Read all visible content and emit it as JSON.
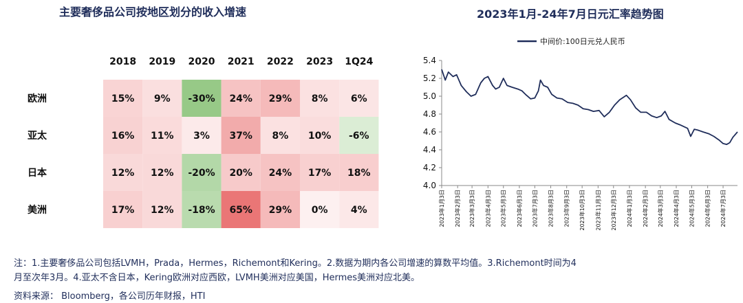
{
  "left_title": "主要奢侈品公司按地区划分的收入增速",
  "right_title": "2023年1月-24年7月日元汇率趋势图",
  "notes": {
    "line1": "注：1.主要奢侈品公司包括LVMH，Prada，Hermes，Richemont和Kering。2.数据为期内各公司增速的算数平均值。3.Richemont时间为4",
    "line2": "月至次年3月。4.亚太不含日本，Kering欧洲对应西欧，LVMH美洲对应美国，Hermes美洲对应北美。",
    "source": "资料来源： Bloomberg，各公司历年财报，HTI"
  },
  "colors": {
    "title": "#1f2d5a",
    "line": "#1f2d5a",
    "positive": "#e8474a",
    "negative": "#63b246"
  },
  "chart_data": [
    {
      "type": "heatmap",
      "title": "主要奢侈品公司按地区划分的收入增速",
      "columns": [
        "2018",
        "2019",
        "2020",
        "2021",
        "2022",
        "2023",
        "1Q24"
      ],
      "rows": [
        "欧洲",
        "亚太",
        "日本",
        "美洲"
      ],
      "values": [
        [
          15,
          9,
          -30,
          24,
          29,
          8,
          6
        ],
        [
          16,
          11,
          3,
          37,
          8,
          10,
          -6
        ],
        [
          12,
          12,
          -20,
          20,
          24,
          17,
          18
        ],
        [
          17,
          12,
          -18,
          65,
          29,
          0,
          4
        ]
      ],
      "unit": "%"
    },
    {
      "type": "line",
      "title": "2023年1月-24年7月日元汇率趋势图",
      "series": [
        {
          "name": "中间价:100日元兑人民币"
        }
      ],
      "ylim": [
        4.0,
        5.4
      ],
      "yticks": [
        4.0,
        4.2,
        4.4,
        4.6,
        4.8,
        5.0,
        5.2,
        5.4
      ],
      "grid": false,
      "legend": "top",
      "x_tick_labels": [
        "2023年1月3日",
        "2023年2月3日",
        "2023年3月3日",
        "2023年4月3日",
        "2023年5月3日",
        "2023年6月3日",
        "2023年7月3日",
        "2023年8月3日",
        "2023年9月3日",
        "2023年10月3日",
        "2023年11月3日",
        "2023年12月3日",
        "2024年1月3日",
        "2024年2月3日",
        "2024年3月3日",
        "2024年4月3日",
        "2024年5月3日",
        "2024年6月3日",
        "2024年7月3日"
      ],
      "points": [
        [
          "2023-01-03",
          5.3
        ],
        [
          "2023-01-10",
          5.18
        ],
        [
          "2023-01-16",
          5.27
        ],
        [
          "2023-01-25",
          5.22
        ],
        [
          "2023-02-01",
          5.24
        ],
        [
          "2023-02-10",
          5.12
        ],
        [
          "2023-02-20",
          5.05
        ],
        [
          "2023-03-01",
          5.0
        ],
        [
          "2023-03-10",
          5.02
        ],
        [
          "2023-03-20",
          5.15
        ],
        [
          "2023-03-27",
          5.2
        ],
        [
          "2023-04-03",
          5.22
        ],
        [
          "2023-04-12",
          5.12
        ],
        [
          "2023-04-18",
          5.08
        ],
        [
          "2023-04-25",
          5.1
        ],
        [
          "2023-05-03",
          5.2
        ],
        [
          "2023-05-10",
          5.12
        ],
        [
          "2023-05-20",
          5.1
        ],
        [
          "2023-05-31",
          5.08
        ],
        [
          "2023-06-08",
          5.06
        ],
        [
          "2023-06-15",
          5.02
        ],
        [
          "2023-06-25",
          4.97
        ],
        [
          "2023-07-03",
          4.98
        ],
        [
          "2023-07-10",
          5.06
        ],
        [
          "2023-07-14",
          5.18
        ],
        [
          "2023-07-20",
          5.12
        ],
        [
          "2023-07-28",
          5.1
        ],
        [
          "2023-08-05",
          5.02
        ],
        [
          "2023-08-15",
          4.98
        ],
        [
          "2023-08-25",
          4.97
        ],
        [
          "2023-09-05",
          4.93
        ],
        [
          "2023-09-15",
          4.92
        ],
        [
          "2023-09-25",
          4.9
        ],
        [
          "2023-10-05",
          4.86
        ],
        [
          "2023-10-15",
          4.85
        ],
        [
          "2023-10-25",
          4.83
        ],
        [
          "2023-11-05",
          4.84
        ],
        [
          "2023-11-15",
          4.77
        ],
        [
          "2023-11-25",
          4.82
        ],
        [
          "2023-12-05",
          4.9
        ],
        [
          "2023-12-15",
          4.96
        ],
        [
          "2023-12-28",
          5.01
        ],
        [
          "2024-01-05",
          4.96
        ],
        [
          "2024-01-15",
          4.87
        ],
        [
          "2024-01-25",
          4.82
        ],
        [
          "2024-02-05",
          4.82
        ],
        [
          "2024-02-15",
          4.78
        ],
        [
          "2024-02-25",
          4.76
        ],
        [
          "2024-03-05",
          4.78
        ],
        [
          "2024-03-12",
          4.83
        ],
        [
          "2024-03-20",
          4.74
        ],
        [
          "2024-04-01",
          4.7
        ],
        [
          "2024-04-10",
          4.68
        ],
        [
          "2024-04-25",
          4.64
        ],
        [
          "2024-05-01",
          4.55
        ],
        [
          "2024-05-08",
          4.63
        ],
        [
          "2024-05-15",
          4.62
        ],
        [
          "2024-05-25",
          4.6
        ],
        [
          "2024-06-05",
          4.58
        ],
        [
          "2024-06-15",
          4.55
        ],
        [
          "2024-06-25",
          4.51
        ],
        [
          "2024-07-03",
          4.47
        ],
        [
          "2024-07-10",
          4.46
        ],
        [
          "2024-07-16",
          4.48
        ],
        [
          "2024-07-22",
          4.54
        ],
        [
          "2024-07-31",
          4.6
        ]
      ]
    }
  ]
}
